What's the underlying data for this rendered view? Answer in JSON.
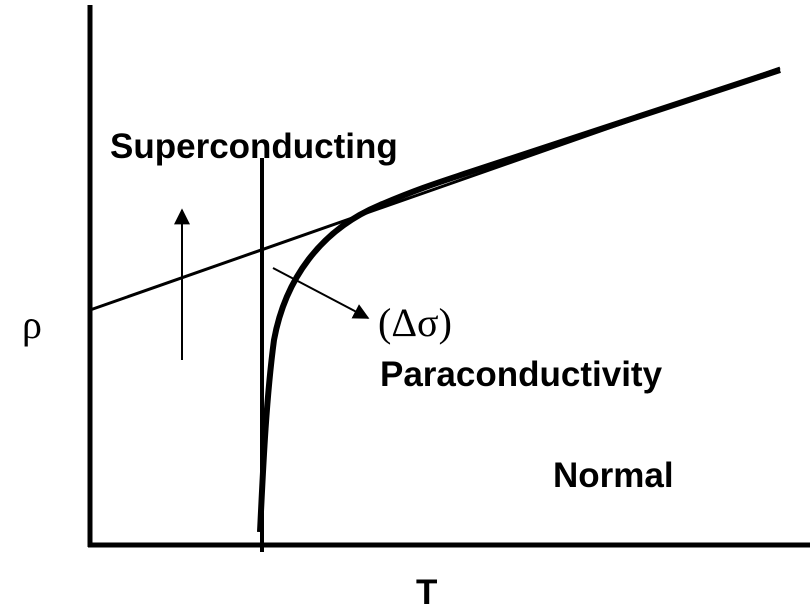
{
  "axes": {
    "y_label": "ρ",
    "x_label": "T"
  },
  "regions": {
    "superconducting": "Superconducting",
    "normal": "Normal"
  },
  "annotation": {
    "symbol": "(Δσ)",
    "label": "Paraconductivity"
  }
}
